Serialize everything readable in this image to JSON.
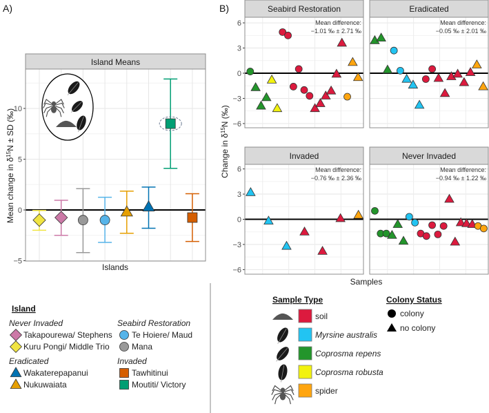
{
  "chart_data": [
    {
      "type": "errorbar",
      "panel_label": "A)",
      "strip": "Island Means",
      "xlabel": "Islands",
      "ylabel_parts": [
        "Mean change in δ",
        "15",
        "N ± SD (‰)"
      ],
      "ylim": [
        -5,
        14
      ],
      "yticks": [
        -5,
        0,
        5,
        10
      ],
      "islands": [
        {
          "name": "Kuru Pongi/ Middle Trio",
          "status": "Never Invaded",
          "shape": "diamond",
          "color": "#F0E442",
          "mean": -1.0,
          "lower": -2.0,
          "upper": -0.05
        },
        {
          "name": "Takapourewa/ Stephens",
          "status": "Never Invaded",
          "shape": "diamond",
          "color": "#CC79A7",
          "mean": -0.75,
          "lower": -2.5,
          "upper": 0.95
        },
        {
          "name": "Mana",
          "status": "Seabird Restoration",
          "shape": "circle",
          "color": "#999999",
          "mean": -1.0,
          "lower": -4.2,
          "upper": 2.1
        },
        {
          "name": "Te Hoiere/ Maud",
          "status": "Seabird Restoration",
          "shape": "circle",
          "color": "#56B4E9",
          "mean": -1.0,
          "lower": -3.2,
          "upper": 1.25
        },
        {
          "name": "Nukuwaiata",
          "status": "Eradicated",
          "shape": "triangle",
          "color": "#E69F00",
          "mean": -0.2,
          "lower": -2.3,
          "upper": 1.85
        },
        {
          "name": "Wakaterepapanui",
          "status": "Eradicated",
          "shape": "triangle",
          "color": "#0072B2",
          "mean": 0.3,
          "lower": -1.8,
          "upper": 2.25
        },
        {
          "name": "Moutiti/ Victory",
          "status": "Invaded",
          "shape": "square",
          "color": "#009E73",
          "mean": 8.5,
          "lower": 4.1,
          "upper": 12.9,
          "highlighted": true
        },
        {
          "name": "Tawhitinui",
          "status": "Invaded",
          "shape": "square",
          "color": "#D55E00",
          "mean": -0.75,
          "lower": -3.1,
          "upper": 1.6
        }
      ]
    },
    {
      "type": "scatter",
      "panel_label": "B)",
      "xlabel": "Samples",
      "ylabel_parts": [
        "Change in δ",
        "15",
        "N (‰)"
      ],
      "ylim": [
        -6.5,
        7
      ],
      "yticks": [
        -6,
        -3,
        0,
        3,
        6
      ],
      "point_fields": [
        "x",
        "y",
        "sample_type",
        "colony"
      ],
      "facets": [
        {
          "strip": "Seabird Restoration",
          "annotation": [
            "Mean difference:",
            "−1.01 ‰ ± 2.71 ‰"
          ],
          "xlim": [
            0,
            22
          ],
          "points": [
            [
              1,
              0.2,
              "cr",
              "c"
            ],
            [
              2,
              -1.7,
              "cr",
              "n"
            ],
            [
              3,
              -3.9,
              "cr",
              "n"
            ],
            [
              4,
              -2.9,
              "cr",
              "n"
            ],
            [
              5,
              -0.8,
              "co",
              "n"
            ],
            [
              6,
              -4.2,
              "co",
              "n"
            ],
            [
              7,
              4.9,
              "soil",
              "c"
            ],
            [
              8,
              4.5,
              "soil",
              "c"
            ],
            [
              9,
              -1.6,
              "soil",
              "c"
            ],
            [
              10,
              0.5,
              "soil",
              "c"
            ],
            [
              11,
              -2.0,
              "soil",
              "c"
            ],
            [
              12,
              -2.7,
              "soil",
              "c"
            ],
            [
              13,
              -4.2,
              "soil",
              "n"
            ],
            [
              14,
              -3.6,
              "soil",
              "n"
            ],
            [
              15,
              -2.7,
              "soil",
              "n"
            ],
            [
              16,
              -2.1,
              "soil",
              "n"
            ],
            [
              17,
              -0.1,
              "soil",
              "n"
            ],
            [
              18,
              3.6,
              "soil",
              "n"
            ],
            [
              19,
              -2.8,
              "spider",
              "c"
            ],
            [
              20,
              1.3,
              "spider",
              "n"
            ],
            [
              21,
              -0.5,
              "spider",
              "n"
            ]
          ]
        },
        {
          "strip": "Eradicated",
          "annotation": [
            "Mean difference:",
            "−0.05 ‰ ± 2.01 ‰"
          ],
          "xlim": [
            0.2,
            18.8
          ],
          "points": [
            [
              1,
              3.9,
              "cr",
              "n"
            ],
            [
              2,
              4.2,
              "cr",
              "n"
            ],
            [
              3,
              0.4,
              "cr",
              "n"
            ],
            [
              4,
              2.7,
              "my",
              "c"
            ],
            [
              5,
              0.3,
              "my",
              "c"
            ],
            [
              6,
              -0.7,
              "my",
              "n"
            ],
            [
              7,
              -1.4,
              "my",
              "n"
            ],
            [
              8,
              -3.8,
              "my",
              "n"
            ],
            [
              9,
              -0.7,
              "soil",
              "c"
            ],
            [
              10,
              0.5,
              "soil",
              "c"
            ],
            [
              11,
              -0.6,
              "soil",
              "n"
            ],
            [
              12,
              -2.4,
              "soil",
              "n"
            ],
            [
              13,
              -0.4,
              "soil",
              "n"
            ],
            [
              14,
              -0.1,
              "soil",
              "n"
            ],
            [
              15,
              -1.1,
              "soil",
              "n"
            ],
            [
              16,
              0.1,
              "soil",
              "n"
            ],
            [
              17,
              1.0,
              "spider",
              "n"
            ],
            [
              18,
              -1.6,
              "spider",
              "n"
            ]
          ]
        },
        {
          "strip": "Invaded",
          "annotation": [
            "Mean difference:",
            "−0.76 ‰ ± 2.36 ‰"
          ],
          "xlim": [
            0.68,
            7.28
          ],
          "points": [
            [
              1,
              3.2,
              "my",
              "n"
            ],
            [
              2,
              -0.2,
              "my",
              "n"
            ],
            [
              3,
              -3.2,
              "my",
              "n"
            ],
            [
              4,
              -1.5,
              "soil",
              "n"
            ],
            [
              5,
              -3.8,
              "soil",
              "n"
            ],
            [
              6,
              0.1,
              "soil",
              "n"
            ],
            [
              7,
              0.5,
              "spider",
              "n"
            ]
          ]
        },
        {
          "strip": "Never Invaded",
          "annotation": [
            "Mean difference:",
            "−0.94 ‰ ± 1.22 ‰"
          ],
          "xlim": [
            0.1,
            20.8
          ],
          "points": [
            [
              1,
              1.0,
              "cr",
              "c"
            ],
            [
              2,
              -1.7,
              "cr",
              "c"
            ],
            [
              3,
              -1.7,
              "cr",
              "c"
            ],
            [
              4,
              -1.9,
              "cr",
              "n"
            ],
            [
              5,
              -0.6,
              "cr",
              "n"
            ],
            [
              6,
              -2.6,
              "cr",
              "n"
            ],
            [
              7,
              0.3,
              "my",
              "c"
            ],
            [
              8,
              -0.4,
              "my",
              "c"
            ],
            [
              9,
              -1.7,
              "soil",
              "c"
            ],
            [
              10,
              -2.0,
              "soil",
              "c"
            ],
            [
              11,
              -0.7,
              "soil",
              "c"
            ],
            [
              12,
              -1.8,
              "soil",
              "c"
            ],
            [
              13,
              -0.8,
              "soil",
              "c"
            ],
            [
              14,
              2.4,
              "soil",
              "n"
            ],
            [
              15,
              -2.7,
              "soil",
              "n"
            ],
            [
              16,
              -0.4,
              "soil",
              "n"
            ],
            [
              17,
              -0.5,
              "soil",
              "n"
            ],
            [
              18,
              -0.6,
              "soil",
              "n"
            ],
            [
              19,
              -0.8,
              "spider",
              "c"
            ],
            [
              20,
              -1.1,
              "spider",
              "c"
            ]
          ]
        }
      ]
    }
  ],
  "legend_island": {
    "title": "Island",
    "groups": [
      {
        "label": "Never Invaded",
        "items": [
          {
            "label": "Takapourewa/ Stephens",
            "shape": "diamond",
            "color": "#CC79A7"
          },
          {
            "label": "Kuru Pongi/ Middle Trio",
            "shape": "diamond",
            "color": "#F0E442"
          }
        ]
      },
      {
        "label": "Eradicated",
        "items": [
          {
            "label": "Wakaterepapanui",
            "shape": "triangle",
            "color": "#0072B2"
          },
          {
            "label": "Nukuwaiata",
            "shape": "triangle",
            "color": "#E69F00"
          }
        ]
      },
      {
        "label": "Seabird Restoration",
        "items": [
          {
            "label": "Te Hoiere/ Maud",
            "shape": "circle",
            "color": "#56B4E9"
          },
          {
            "label": "Mana",
            "shape": "circle",
            "color": "#999999"
          }
        ]
      },
      {
        "label": "Invaded",
        "items": [
          {
            "label": "Tawhitinui",
            "shape": "square",
            "color": "#D55E00"
          },
          {
            "label": "Moutiti/ Victory",
            "shape": "square",
            "color": "#009E73"
          }
        ]
      }
    ]
  },
  "legend_sample": {
    "title": "Sample Type",
    "items": [
      {
        "key": "soil",
        "label": "soil",
        "italic": false,
        "color": "#DC1A3E",
        "icon": "soil-icon"
      },
      {
        "key": "my",
        "label": "Myrsine australis",
        "italic": true,
        "color": "#22C4F2",
        "icon": "leaf-icon"
      },
      {
        "key": "cr",
        "label": "Coprosma repens",
        "italic": true,
        "color": "#23952B",
        "icon": "leaf-icon"
      },
      {
        "key": "co",
        "label": "Coprosma robusta",
        "italic": true,
        "color": "#F2F20F",
        "icon": "leaf-icon"
      },
      {
        "key": "spider",
        "label": "spider",
        "italic": false,
        "color": "#FFA50F",
        "icon": "spider-icon"
      }
    ]
  },
  "legend_colony": {
    "title": "Colony Status",
    "items": [
      {
        "key": "c",
        "label": "colony",
        "shape": "circle"
      },
      {
        "key": "n",
        "label": "no colony",
        "shape": "triangle"
      }
    ]
  }
}
